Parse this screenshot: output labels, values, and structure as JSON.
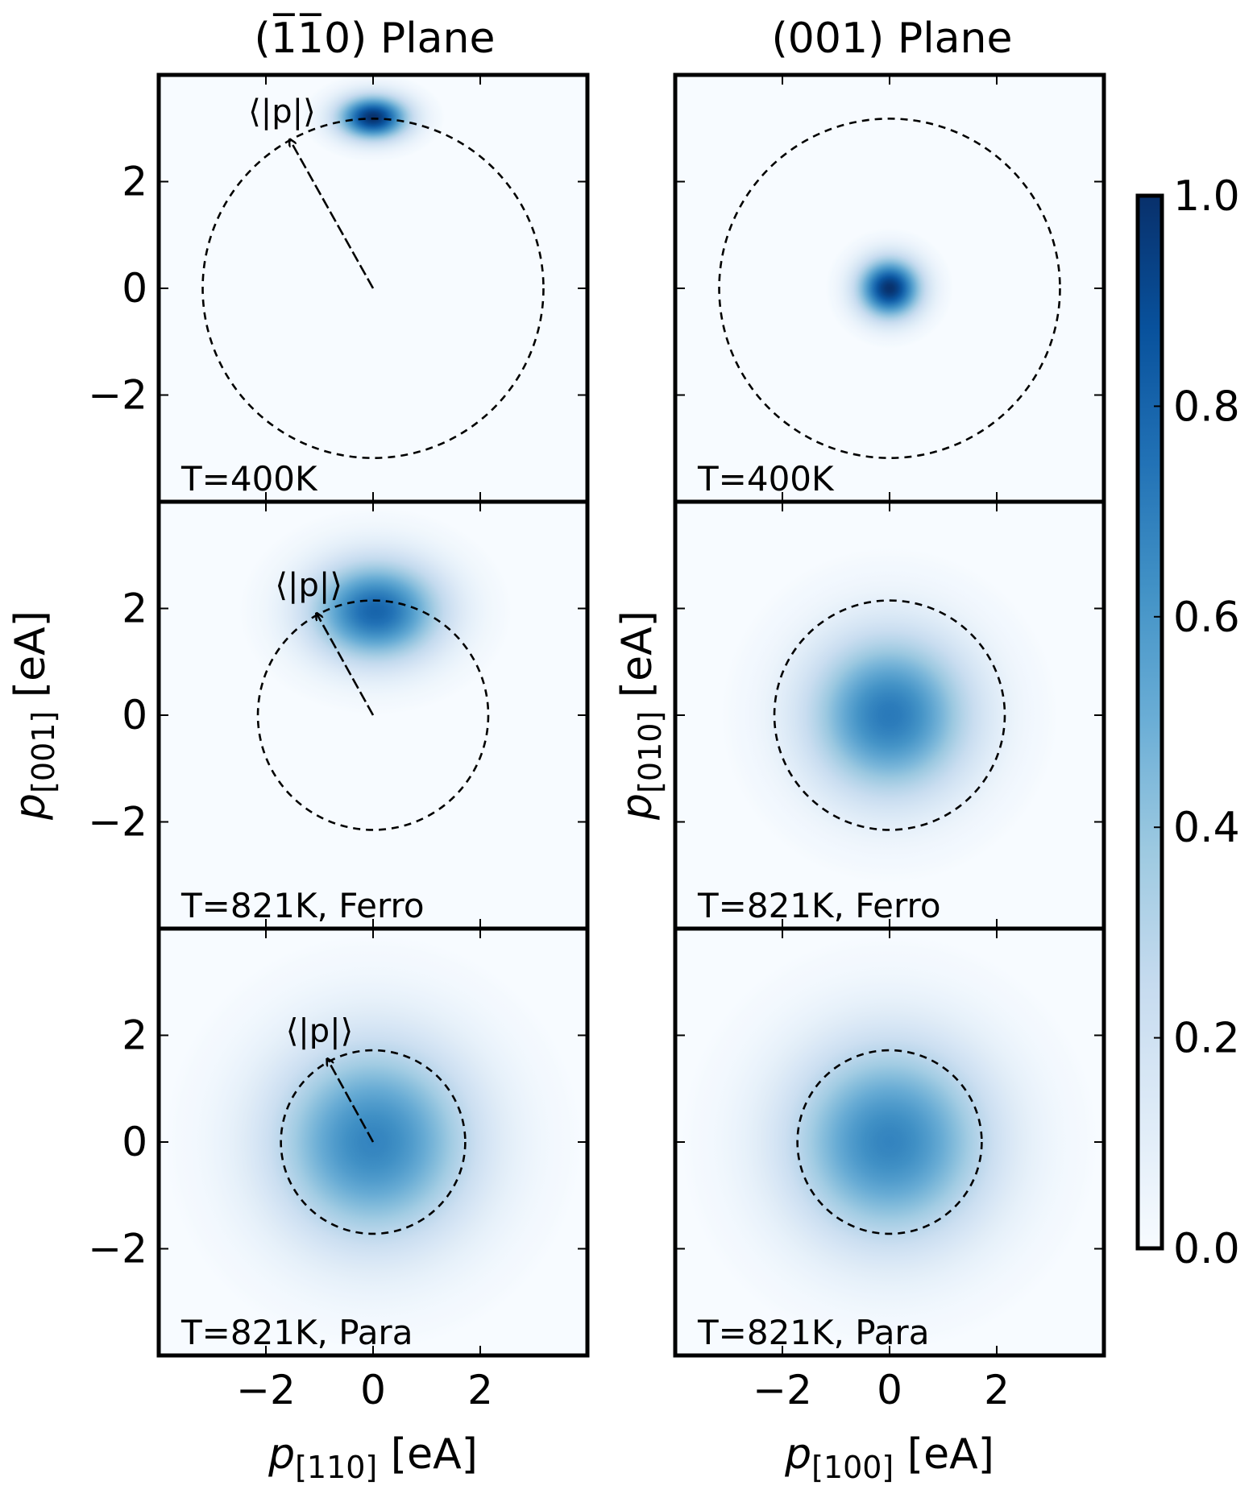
{
  "figure": {
    "column_titles": [
      "(1̅1̅0) Plane",
      "(001) Plane"
    ],
    "colorbar": {
      "min": 0.0,
      "max": 1.0,
      "ticks": [
        "0.0",
        "0.2",
        "0.4",
        "0.6",
        "0.8",
        "1.0"
      ],
      "colormap": [
        "#f7fbff",
        "#deebf7",
        "#c6dbef",
        "#9ecae1",
        "#6baed6",
        "#4292c6",
        "#2171b5",
        "#08519c",
        "#08306b"
      ]
    }
  },
  "chart_data": [
    {
      "type": "heatmap",
      "panel": "left-top",
      "plane": "(1-10)",
      "annotation": "T=400K",
      "arrow_label": "⟨|p|⟩",
      "ylabel": "",
      "xlabel": "",
      "xlim": [
        -4,
        4
      ],
      "ylim": [
        -4,
        4
      ],
      "x_ticks": [
        "−2",
        "0",
        "2"
      ],
      "y_ticks": [
        "−2",
        "0",
        "2"
      ],
      "show_x_tick_labels": false,
      "show_y_tick_labels": true,
      "distribution": {
        "center": [
          0.0,
          3.2
        ],
        "sigma": [
          0.45,
          0.28
        ],
        "peak": 1.0
      },
      "mean_abs_p_radius": 3.18,
      "arrow": {
        "from": [
          0,
          0
        ],
        "to": [
          -1.55,
          2.78
        ]
      }
    },
    {
      "type": "heatmap",
      "panel": "right-top",
      "plane": "(001)",
      "annotation": "T=400K",
      "ylabel": "",
      "xlabel": "",
      "xlim": [
        -4,
        4
      ],
      "ylim": [
        -4,
        4
      ],
      "x_ticks": [
        "−2",
        "0",
        "2"
      ],
      "y_ticks": [
        "−2",
        "0",
        "2"
      ],
      "show_x_tick_labels": false,
      "show_y_tick_labels": false,
      "distribution": {
        "center": [
          0.0,
          0.0
        ],
        "sigma": [
          0.4,
          0.38
        ],
        "peak": 1.0
      },
      "mean_abs_p_radius": 3.18
    },
    {
      "type": "heatmap",
      "panel": "left-middle",
      "plane": "(1-10)",
      "annotation": "T=821K, Ferro",
      "arrow_label": "⟨|p|⟩",
      "ylabel": "p[001] [eA]",
      "xlabel": "",
      "xlim": [
        -4,
        4
      ],
      "ylim": [
        -4,
        4
      ],
      "x_ticks": [
        "−2",
        "0",
        "2"
      ],
      "y_ticks": [
        "−2",
        "0",
        "2"
      ],
      "show_x_tick_labels": false,
      "show_y_tick_labels": true,
      "distribution": {
        "center": [
          0.05,
          1.95
        ],
        "sigma": [
          0.85,
          0.65
        ],
        "peak": 0.8
      },
      "mean_abs_p_radius": 2.15,
      "arrow": {
        "from": [
          0,
          0
        ],
        "to": [
          -1.05,
          1.9
        ]
      }
    },
    {
      "type": "heatmap",
      "panel": "right-middle",
      "plane": "(001)",
      "annotation": "T=821K, Ferro",
      "ylabel": "p[010] [eA]",
      "xlabel": "",
      "xlim": [
        -4,
        4
      ],
      "ylim": [
        -4,
        4
      ],
      "x_ticks": [
        "−2",
        "0",
        "2"
      ],
      "y_ticks": [
        "−2",
        "0",
        "2"
      ],
      "show_x_tick_labels": false,
      "show_y_tick_labels": false,
      "distribution": {
        "center": [
          0.0,
          0.0
        ],
        "sigma": [
          1.05,
          1.05
        ],
        "peak": 0.72
      },
      "mean_abs_p_radius": 2.15
    },
    {
      "type": "heatmap",
      "panel": "left-bottom",
      "plane": "(1-10)",
      "annotation": "T=821K, Para",
      "arrow_label": "⟨|p|⟩",
      "ylabel": "",
      "xlabel": "p[110] [eA]",
      "xlim": [
        -4,
        4
      ],
      "ylim": [
        -4,
        4
      ],
      "x_ticks": [
        "−2",
        "0",
        "2"
      ],
      "y_ticks": [
        "−2",
        "0",
        "2"
      ],
      "show_x_tick_labels": true,
      "show_y_tick_labels": true,
      "distribution": {
        "center": [
          0.0,
          0.0
        ],
        "sigma": [
          1.3,
          1.3
        ],
        "peak": 0.68
      },
      "mean_abs_p_radius": 1.72,
      "arrow": {
        "from": [
          0,
          0
        ],
        "to": [
          -0.85,
          1.55
        ]
      }
    },
    {
      "type": "heatmap",
      "panel": "right-bottom",
      "plane": "(001)",
      "annotation": "T=821K, Para",
      "ylabel": "",
      "xlabel": "p[100] [eA]",
      "xlim": [
        -4,
        4
      ],
      "ylim": [
        -4,
        4
      ],
      "x_ticks": [
        "−2",
        "0",
        "2"
      ],
      "y_ticks": [
        "−2",
        "0",
        "2"
      ],
      "show_x_tick_labels": true,
      "show_y_tick_labels": false,
      "distribution": {
        "center": [
          0.0,
          0.0
        ],
        "sigma": [
          1.3,
          1.3
        ],
        "peak": 0.68
      },
      "mean_abs_p_radius": 1.72
    }
  ]
}
